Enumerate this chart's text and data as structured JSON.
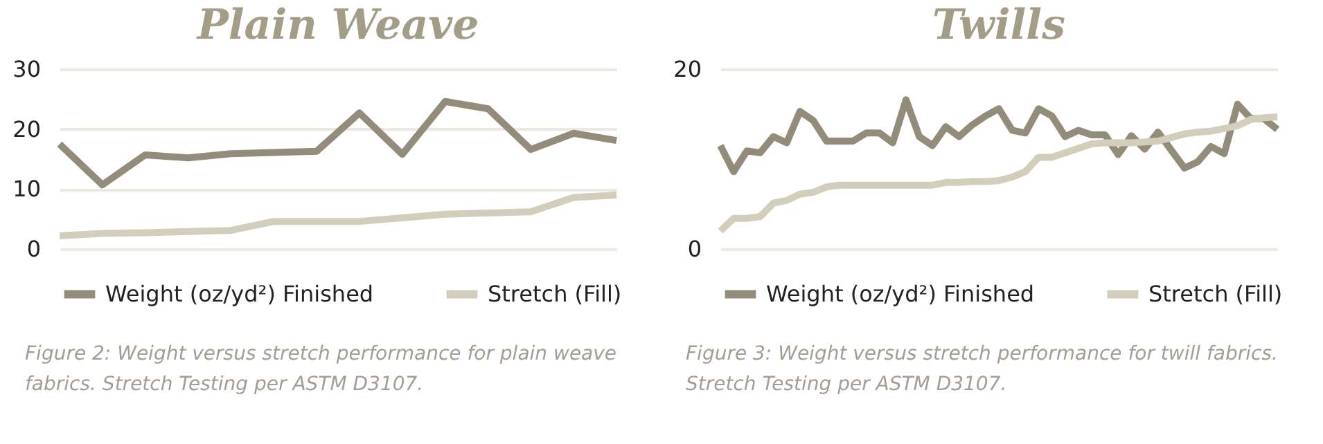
{
  "chart_data": [
    {
      "type": "line",
      "title": "Plain Weave",
      "categories": [
        null,
        null,
        null,
        null,
        null,
        null,
        null,
        null,
        null,
        null,
        null,
        null,
        null,
        null
      ],
      "series": [
        {
          "name": "Weight (oz/yd²) Finished",
          "color": "#948c7a",
          "values": [
            17.5,
            10.7,
            15.7,
            15.2,
            15.9,
            16.1,
            16.3,
            22.7,
            15.8,
            24.6,
            23.4,
            16.6,
            19.3,
            18.1
          ]
        },
        {
          "name": "Stretch (Fill)",
          "color": "#d3cdbb",
          "values": [
            2.2,
            2.6,
            2.7,
            2.9,
            3.1,
            4.6,
            4.6,
            4.6,
            5.2,
            5.8,
            6.0,
            6.2,
            8.6,
            9.0
          ]
        }
      ],
      "ylim": [
        0,
        30
      ],
      "yticks": [
        0,
        10,
        20,
        30
      ],
      "grid": "y",
      "legend": "bottom",
      "marker": "none",
      "line_style": "solid",
      "tick_labels": "y",
      "annotations": [
        "Figure 2: Weight versus stretch performance for plain weave fabrics. Stretch Testing per ASTM D3107."
      ]
    },
    {
      "type": "line",
      "title": "Twills",
      "categories": [
        null,
        null,
        null,
        null,
        null,
        null,
        null,
        null,
        null,
        null,
        null,
        null,
        null,
        null,
        null,
        null,
        null,
        null,
        null,
        null,
        null,
        null,
        null,
        null,
        null,
        null,
        null,
        null,
        null,
        null,
        null,
        null,
        null,
        null,
        null,
        null,
        null,
        null,
        null,
        null,
        null,
        null,
        null
      ],
      "series": [
        {
          "name": "Weight (oz/yd²) Finished",
          "color": "#948c7a",
          "values": [
            11.5,
            8.6,
            10.9,
            10.7,
            12.5,
            11.8,
            15.3,
            14.3,
            12.0,
            12.0,
            12.0,
            12.9,
            12.9,
            11.8,
            16.6,
            12.5,
            11.5,
            13.6,
            12.5,
            13.8,
            14.8,
            15.6,
            13.2,
            12.9,
            15.6,
            14.8,
            12.5,
            13.2,
            12.7,
            12.7,
            10.5,
            12.6,
            11.1,
            13.0,
            11.0,
            9.0,
            9.7,
            11.4,
            10.6,
            16.1,
            14.5,
            14.5,
            13.3
          ]
        },
        {
          "name": "Stretch (Fill)",
          "color": "#d3cdbb",
          "values": [
            2.0,
            3.4,
            3.4,
            3.6,
            5.1,
            5.4,
            6.1,
            6.3,
            6.9,
            7.1,
            7.1,
            7.1,
            7.1,
            7.1,
            7.1,
            7.1,
            7.1,
            7.4,
            7.4,
            7.5,
            7.5,
            7.6,
            8.0,
            8.6,
            10.2,
            10.2,
            10.7,
            11.2,
            11.7,
            11.8,
            11.8,
            11.8,
            11.9,
            12.0,
            12.4,
            12.8,
            13.0,
            13.1,
            13.4,
            13.7,
            14.4,
            14.6,
            14.7
          ]
        }
      ],
      "ylim": [
        0,
        20
      ],
      "yticks": [
        0,
        20
      ],
      "grid": "y",
      "legend": "bottom",
      "marker": "none",
      "line_style": "solid",
      "tick_labels": "y",
      "annotations": [
        "Figure 3: Weight versus stretch performance for twill fabrics. Stretch Testing per ASTM D3107."
      ]
    }
  ]
}
